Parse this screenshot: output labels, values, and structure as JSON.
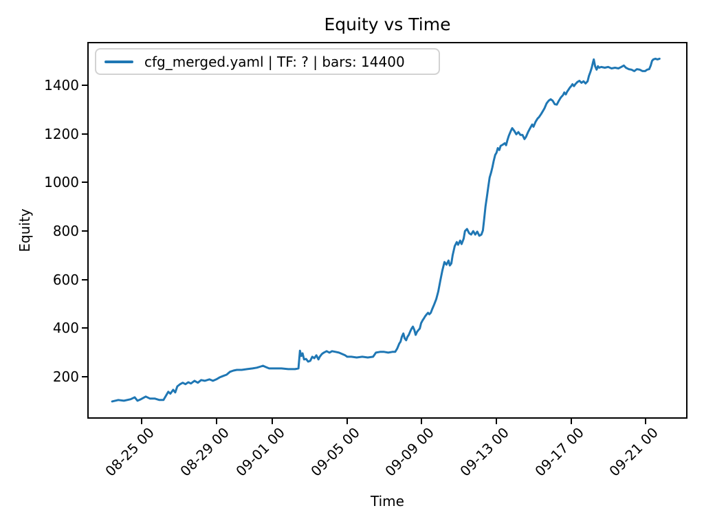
{
  "colors": {
    "line": "#1f77b4",
    "text": "#000000",
    "spine": "#000000",
    "legend_border": "#d2d2d2",
    "background": "#ffffff"
  },
  "chart_data": {
    "type": "line",
    "title": "Equity vs Time",
    "xlabel": "Time",
    "ylabel": "Equity",
    "grid": false,
    "legend": {
      "position": "upper left",
      "entries": [
        {
          "label": "cfg_merged.yaml | TF: ? | bars: 14400",
          "color": "#1f77b4"
        }
      ]
    },
    "x_axis": {
      "unit": "days relative to 08-25 00:00",
      "range": [
        -2.91,
        29.24
      ],
      "tick_rotation_deg": 45,
      "ticks": [
        {
          "pos": 0,
          "label": "08-25 00"
        },
        {
          "pos": 4,
          "label": "08-29 00"
        },
        {
          "pos": 7,
          "label": "09-01 00"
        },
        {
          "pos": 11,
          "label": "09-05 00"
        },
        {
          "pos": 15,
          "label": "09-09 00"
        },
        {
          "pos": 19,
          "label": "09-13 00"
        },
        {
          "pos": 23,
          "label": "09-17 00"
        },
        {
          "pos": 27,
          "label": "09-21 00"
        }
      ]
    },
    "y_axis": {
      "range": [
        27,
        1578
      ],
      "ticks": [
        200,
        400,
        600,
        800,
        1000,
        1200,
        1400
      ]
    },
    "series": [
      {
        "name": "cfg_merged.yaml | TF: ? | bars: 14400",
        "color": "#1f77b4",
        "points": [
          [
            -1.58,
            98
          ],
          [
            -1.25,
            104
          ],
          [
            -0.95,
            101
          ],
          [
            -0.59,
            107
          ],
          [
            -0.37,
            115
          ],
          [
            -0.22,
            101
          ],
          [
            -0.04,
            107
          ],
          [
            0.22,
            118
          ],
          [
            0.44,
            110
          ],
          [
            0.7,
            110
          ],
          [
            0.95,
            104
          ],
          [
            1.17,
            104
          ],
          [
            1.32,
            124
          ],
          [
            1.43,
            138
          ],
          [
            1.54,
            130
          ],
          [
            1.69,
            146
          ],
          [
            1.8,
            135
          ],
          [
            1.91,
            160
          ],
          [
            2.06,
            169
          ],
          [
            2.2,
            175
          ],
          [
            2.35,
            169
          ],
          [
            2.5,
            177
          ],
          [
            2.64,
            172
          ],
          [
            2.83,
            183
          ],
          [
            3.01,
            175
          ],
          [
            3.19,
            186
          ],
          [
            3.38,
            183
          ],
          [
            3.63,
            189
          ],
          [
            3.82,
            183
          ],
          [
            4.0,
            189
          ],
          [
            4.18,
            197
          ],
          [
            4.37,
            203
          ],
          [
            4.55,
            208
          ],
          [
            4.73,
            220
          ],
          [
            4.92,
            225
          ],
          [
            5.1,
            228
          ],
          [
            5.36,
            228
          ],
          [
            5.65,
            231
          ],
          [
            5.94,
            234
          ],
          [
            6.17,
            237
          ],
          [
            6.39,
            242
          ],
          [
            6.5,
            245
          ],
          [
            6.64,
            240
          ],
          [
            6.83,
            234
          ],
          [
            7.12,
            234
          ],
          [
            7.49,
            234
          ],
          [
            7.85,
            231
          ],
          [
            8.22,
            231
          ],
          [
            8.4,
            234
          ],
          [
            8.48,
            307
          ],
          [
            8.55,
            285
          ],
          [
            8.62,
            296
          ],
          [
            8.7,
            271
          ],
          [
            8.81,
            273
          ],
          [
            8.92,
            262
          ],
          [
            9.03,
            265
          ],
          [
            9.14,
            282
          ],
          [
            9.25,
            276
          ],
          [
            9.36,
            288
          ],
          [
            9.47,
            271
          ],
          [
            9.54,
            282
          ],
          [
            9.65,
            293
          ],
          [
            9.76,
            299
          ],
          [
            9.91,
            305
          ],
          [
            10.06,
            299
          ],
          [
            10.2,
            305
          ],
          [
            10.39,
            302
          ],
          [
            10.57,
            299
          ],
          [
            10.75,
            293
          ],
          [
            10.9,
            288
          ],
          [
            11.01,
            282
          ],
          [
            11.23,
            282
          ],
          [
            11.52,
            279
          ],
          [
            11.82,
            282
          ],
          [
            12.11,
            279
          ],
          [
            12.4,
            282
          ],
          [
            12.55,
            299
          ],
          [
            12.77,
            302
          ],
          [
            12.99,
            302
          ],
          [
            13.21,
            299
          ],
          [
            13.43,
            302
          ],
          [
            13.58,
            302
          ],
          [
            13.69,
            316
          ],
          [
            13.8,
            336
          ],
          [
            13.87,
            344
          ],
          [
            13.94,
            364
          ],
          [
            14.02,
            378
          ],
          [
            14.09,
            358
          ],
          [
            14.17,
            350
          ],
          [
            14.24,
            364
          ],
          [
            14.31,
            372
          ],
          [
            14.39,
            387
          ],
          [
            14.46,
            398
          ],
          [
            14.53,
            406
          ],
          [
            14.61,
            392
          ],
          [
            14.68,
            372
          ],
          [
            14.75,
            384
          ],
          [
            14.83,
            392
          ],
          [
            14.9,
            398
          ],
          [
            14.97,
            420
          ],
          [
            15.05,
            432
          ],
          [
            15.12,
            440
          ],
          [
            15.19,
            449
          ],
          [
            15.27,
            457
          ],
          [
            15.34,
            463
          ],
          [
            15.41,
            457
          ],
          [
            15.49,
            463
          ],
          [
            15.56,
            477
          ],
          [
            15.67,
            497
          ],
          [
            15.78,
            519
          ],
          [
            15.89,
            551
          ],
          [
            16.0,
            596
          ],
          [
            16.11,
            638
          ],
          [
            16.22,
            672
          ],
          [
            16.33,
            661
          ],
          [
            16.44,
            678
          ],
          [
            16.51,
            658
          ],
          [
            16.59,
            666
          ],
          [
            16.66,
            700
          ],
          [
            16.77,
            737
          ],
          [
            16.88,
            754
          ],
          [
            16.95,
            743
          ],
          [
            17.06,
            760
          ],
          [
            17.14,
            746
          ],
          [
            17.25,
            768
          ],
          [
            17.32,
            799
          ],
          [
            17.43,
            808
          ],
          [
            17.54,
            791
          ],
          [
            17.65,
            785
          ],
          [
            17.76,
            799
          ],
          [
            17.87,
            785
          ],
          [
            17.98,
            797
          ],
          [
            18.09,
            780
          ],
          [
            18.2,
            785
          ],
          [
            18.28,
            802
          ],
          [
            18.35,
            850
          ],
          [
            18.42,
            901
          ],
          [
            18.5,
            944
          ],
          [
            18.57,
            983
          ],
          [
            18.64,
            1020
          ],
          [
            18.72,
            1040
          ],
          [
            18.79,
            1062
          ],
          [
            18.86,
            1088
          ],
          [
            18.94,
            1113
          ],
          [
            19.01,
            1122
          ],
          [
            19.08,
            1141
          ],
          [
            19.16,
            1133
          ],
          [
            19.23,
            1150
          ],
          [
            19.34,
            1155
          ],
          [
            19.45,
            1161
          ],
          [
            19.52,
            1153
          ],
          [
            19.6,
            1175
          ],
          [
            19.67,
            1192
          ],
          [
            19.78,
            1212
          ],
          [
            19.85,
            1223
          ],
          [
            19.96,
            1212
          ],
          [
            20.07,
            1198
          ],
          [
            20.18,
            1207
          ],
          [
            20.29,
            1195
          ],
          [
            20.4,
            1195
          ],
          [
            20.51,
            1178
          ],
          [
            20.59,
            1187
          ],
          [
            20.7,
            1207
          ],
          [
            20.81,
            1223
          ],
          [
            20.92,
            1238
          ],
          [
            20.99,
            1229
          ],
          [
            21.1,
            1249
          ],
          [
            21.21,
            1263
          ],
          [
            21.28,
            1268
          ],
          [
            21.39,
            1280
          ],
          [
            21.5,
            1294
          ],
          [
            21.58,
            1305
          ],
          [
            21.69,
            1325
          ],
          [
            21.8,
            1336
          ],
          [
            21.91,
            1342
          ],
          [
            22.02,
            1336
          ],
          [
            22.13,
            1322
          ],
          [
            22.24,
            1320
          ],
          [
            22.35,
            1336
          ],
          [
            22.46,
            1350
          ],
          [
            22.57,
            1359
          ],
          [
            22.64,
            1370
          ],
          [
            22.72,
            1362
          ],
          [
            22.79,
            1373
          ],
          [
            22.86,
            1381
          ],
          [
            22.94,
            1390
          ],
          [
            23.01,
            1396
          ],
          [
            23.08,
            1404
          ],
          [
            23.16,
            1396
          ],
          [
            23.23,
            1404
          ],
          [
            23.34,
            1413
          ],
          [
            23.45,
            1418
          ],
          [
            23.56,
            1410
          ],
          [
            23.67,
            1416
          ],
          [
            23.78,
            1407
          ],
          [
            23.89,
            1416
          ],
          [
            23.96,
            1438
          ],
          [
            24.04,
            1455
          ],
          [
            24.11,
            1472
          ],
          [
            24.18,
            1495
          ],
          [
            24.22,
            1506
          ],
          [
            24.29,
            1478
          ],
          [
            24.37,
            1464
          ],
          [
            24.44,
            1478
          ],
          [
            24.51,
            1472
          ],
          [
            24.62,
            1475
          ],
          [
            24.81,
            1472
          ],
          [
            24.99,
            1475
          ],
          [
            25.17,
            1469
          ],
          [
            25.36,
            1472
          ],
          [
            25.54,
            1469
          ],
          [
            25.69,
            1475
          ],
          [
            25.83,
            1481
          ],
          [
            25.94,
            1472
          ],
          [
            26.09,
            1466
          ],
          [
            26.24,
            1464
          ],
          [
            26.39,
            1458
          ],
          [
            26.53,
            1466
          ],
          [
            26.68,
            1464
          ],
          [
            26.83,
            1458
          ],
          [
            26.97,
            1458
          ],
          [
            27.08,
            1464
          ],
          [
            27.19,
            1466
          ],
          [
            27.27,
            1481
          ],
          [
            27.34,
            1500
          ],
          [
            27.41,
            1506
          ],
          [
            27.52,
            1509
          ],
          [
            27.63,
            1506
          ],
          [
            27.74,
            1509
          ]
        ]
      }
    ]
  }
}
